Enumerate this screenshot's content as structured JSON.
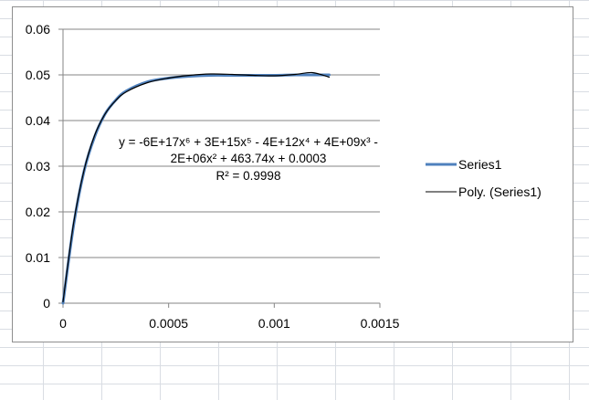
{
  "chart_data": {
    "type": "scatter",
    "title": "",
    "xlabel": "",
    "ylabel": "",
    "xlim": [
      0,
      0.0015
    ],
    "ylim": [
      0,
      0.06
    ],
    "x_ticks": [
      0,
      0.0005,
      0.001,
      0.0015
    ],
    "x_tick_labels": [
      "0",
      "0.0005",
      "0.001",
      "0.0015"
    ],
    "y_ticks": [
      0,
      0.01,
      0.02,
      0.03,
      0.04,
      0.05,
      0.06
    ],
    "y_tick_labels": [
      "0",
      "0.01",
      "0.02",
      "0.03",
      "0.04",
      "0.05",
      "0.06"
    ],
    "grid": "horizontal major gridlines",
    "legend_position": "right",
    "series": [
      {
        "name": "Series1",
        "style": "smooth line",
        "color": "#4f81bd",
        "x": [
          0,
          5e-05,
          0.0001,
          0.00015,
          0.0002,
          0.00025,
          0.0003,
          0.0004,
          0.0005,
          0.0006,
          0.0007,
          0.0008,
          0.0009,
          0.001,
          0.0011,
          0.0012,
          0.00126
        ],
        "y": [
          0,
          0.017,
          0.029,
          0.0365,
          0.0415,
          0.0445,
          0.0465,
          0.0485,
          0.0493,
          0.0497,
          0.0499,
          0.0499,
          0.0499,
          0.0499,
          0.05,
          0.05,
          0.05
        ]
      },
      {
        "name": "Poly. (Series1)",
        "style": "trendline",
        "color": "#000000",
        "x": [
          0,
          5e-05,
          0.0001,
          0.00015,
          0.0002,
          0.00025,
          0.0003,
          0.0004,
          0.0005,
          0.0006,
          0.0007,
          0.0008,
          0.0009,
          0.001,
          0.0011,
          0.00118,
          0.00126
        ],
        "y": [
          0.0003,
          0.0175,
          0.0292,
          0.0368,
          0.0415,
          0.0444,
          0.0463,
          0.0483,
          0.0493,
          0.0499,
          0.0502,
          0.0501,
          0.0499,
          0.0498,
          0.0501,
          0.0505,
          0.0495
        ]
      }
    ],
    "trendline_equation_lines": [
      "y = -6E+17x⁶ + 3E+15x⁵ - 4E+12x⁴ + 4E+09x³ -",
      "2E+06x² + 463.74x + 0.0003",
      "R² = 0.9998"
    ]
  }
}
